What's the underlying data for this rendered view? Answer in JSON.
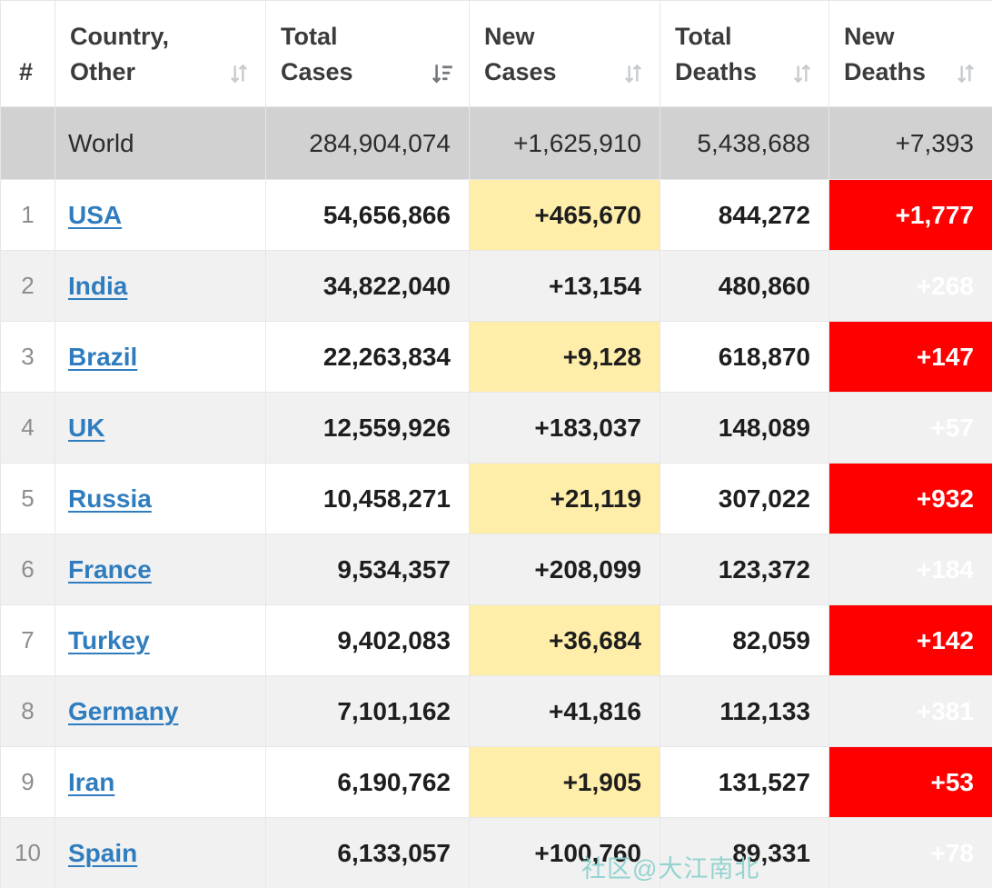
{
  "watermark": {
    "text": "社区@大江南北"
  },
  "colors": {
    "new_cases_bg": "#FFEEAA",
    "new_deaths_bg": "#FF0000",
    "link": "#2F7DBE",
    "world_row_bg": "#D1D1D1",
    "shaded_row_bg": "#F1F1F1",
    "header_text": "#3B3B3B",
    "rank_text": "#8D8D8D",
    "border_color": "#E7E7E7",
    "watermark_color": "#8ED2CF"
  },
  "table": {
    "headers": [
      {
        "label": "#",
        "sort": "none"
      },
      {
        "label": "Country, Other",
        "sort": "inactive"
      },
      {
        "label": "Total Cases",
        "sort": "desc"
      },
      {
        "label": "New Cases",
        "sort": "inactive"
      },
      {
        "label": "Total Deaths",
        "sort": "inactive"
      },
      {
        "label": "New Deaths",
        "sort": "inactive"
      }
    ],
    "world_row": {
      "rank": "",
      "country": "World",
      "total_cases": "284,904,074",
      "new_cases": "+1,625,910",
      "total_deaths": "5,438,688",
      "new_deaths": "+7,393"
    },
    "rows": [
      {
        "rank": "1",
        "country": "USA",
        "total_cases": "54,656,866",
        "new_cases": "+465,670",
        "total_deaths": "844,272",
        "new_deaths": "+1,777"
      },
      {
        "rank": "2",
        "country": "India",
        "total_cases": "34,822,040",
        "new_cases": "+13,154",
        "total_deaths": "480,860",
        "new_deaths": "+268"
      },
      {
        "rank": "3",
        "country": "Brazil",
        "total_cases": "22,263,834",
        "new_cases": "+9,128",
        "total_deaths": "618,870",
        "new_deaths": "+147"
      },
      {
        "rank": "4",
        "country": "UK",
        "total_cases": "12,559,926",
        "new_cases": "+183,037",
        "total_deaths": "148,089",
        "new_deaths": "+57"
      },
      {
        "rank": "5",
        "country": "Russia",
        "total_cases": "10,458,271",
        "new_cases": "+21,119",
        "total_deaths": "307,022",
        "new_deaths": "+932"
      },
      {
        "rank": "6",
        "country": "France",
        "total_cases": "9,534,357",
        "new_cases": "+208,099",
        "total_deaths": "123,372",
        "new_deaths": "+184"
      },
      {
        "rank": "7",
        "country": "Turkey",
        "total_cases": "9,402,083",
        "new_cases": "+36,684",
        "total_deaths": "82,059",
        "new_deaths": "+142"
      },
      {
        "rank": "8",
        "country": "Germany",
        "total_cases": "7,101,162",
        "new_cases": "+41,816",
        "total_deaths": "112,133",
        "new_deaths": "+381"
      },
      {
        "rank": "9",
        "country": "Iran",
        "total_cases": "6,190,762",
        "new_cases": "+1,905",
        "total_deaths": "131,527",
        "new_deaths": "+53"
      },
      {
        "rank": "10",
        "country": "Spain",
        "total_cases": "6,133,057",
        "new_cases": "+100,760",
        "total_deaths": "89,331",
        "new_deaths": "+78"
      }
    ]
  }
}
